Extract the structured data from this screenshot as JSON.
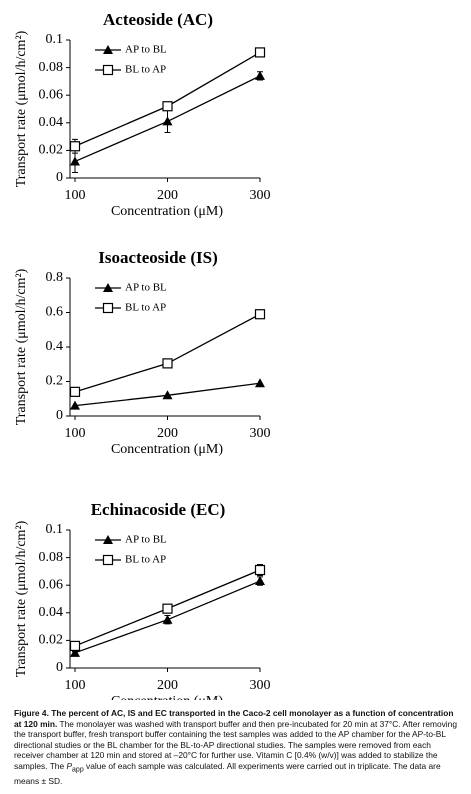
{
  "chart_data": [
    {
      "type": "line",
      "title": "Acteoside (AC)",
      "x_label": "Concentration (μM)",
      "y_label": "Transport rate (μmol/h/cm²)",
      "x": [
        100,
        200,
        300
      ],
      "xlim": [
        100,
        300
      ],
      "xticks": [
        100,
        200,
        300
      ],
      "ylim": [
        0,
        0.1
      ],
      "yticks": [
        0,
        0.02,
        0.04,
        0.06,
        0.08,
        0.1
      ],
      "legend": "upper left",
      "series": [
        {
          "name": "AP to BL",
          "color": "#000000",
          "marker": "triangle",
          "values": [
            0.012,
            0.041,
            0.074
          ],
          "errors": [
            0.008,
            0.008,
            0.003
          ]
        },
        {
          "name": "BL to AP",
          "color": "#000000",
          "marker": "square",
          "values": [
            0.023,
            0.052,
            0.091
          ],
          "errors": [
            0.005,
            0.003,
            0.003
          ]
        }
      ]
    },
    {
      "type": "line",
      "title": "Isoacteoside (IS)",
      "x_label": "Concentration (μM)",
      "y_label": "Transport rate (μmol/h/cm²)",
      "x": [
        100,
        200,
        300
      ],
      "xlim": [
        100,
        300
      ],
      "xticks": [
        100,
        200,
        300
      ],
      "ylim": [
        0,
        0.8
      ],
      "yticks": [
        0,
        0.2,
        0.4,
        0.6,
        0.8
      ],
      "legend": "upper left",
      "series": [
        {
          "name": "AP to BL",
          "color": "#000000",
          "marker": "triangle",
          "values": [
            0.06,
            0.12,
            0.19
          ]
        },
        {
          "name": "BL to AP",
          "color": "#000000",
          "marker": "square",
          "values": [
            0.14,
            0.305,
            0.59
          ]
        }
      ]
    },
    {
      "type": "line",
      "title": "Echinacoside (EC)",
      "x_label": "Concentration (μM)",
      "y_label": "Transport rate (μmol/h/cm²)",
      "x": [
        100,
        200,
        300
      ],
      "xlim": [
        100,
        300
      ],
      "xticks": [
        100,
        200,
        300
      ],
      "ylim": [
        0,
        0.1
      ],
      "yticks": [
        0,
        0.02,
        0.04,
        0.06,
        0.08,
        0.1
      ],
      "legend": "upper left",
      "series": [
        {
          "name": "AP to BL",
          "color": "#000000",
          "marker": "triangle",
          "values": [
            0.011,
            0.035,
            0.063
          ],
          "errors": [
            0.001,
            0.003,
            0.003
          ]
        },
        {
          "name": "BL to AP",
          "color": "#000000",
          "marker": "square",
          "values": [
            0.016,
            0.043,
            0.071
          ],
          "errors": [
            0.002,
            0.002,
            0.004
          ]
        }
      ]
    }
  ],
  "caption": {
    "title": "Figure 4. The percent of AC, IS and EC transported in the Caco-2 cell monolayer as a function of concentration at 120 min.",
    "body_before": "The monolayer was washed with transport buffer and then pre-incubated for 20 min at 37°C. After removing the transport buffer, fresh transport buffer containing the test samples was added to the AP chamber for the AP-to-BL directional studies or the BL chamber for the BL-to-AP directional studies. The samples were removed from each receiver chamber at 120 min and stored at –20°C for further use. Vitamin C [0.4% (w/v)] was added to stabilize the samples. The ",
    "symbol": "P",
    "subscript": "app",
    "body_after": " value of each sample was calculated. All experiments were carried out in triplicate. The data are means ± SD."
  }
}
